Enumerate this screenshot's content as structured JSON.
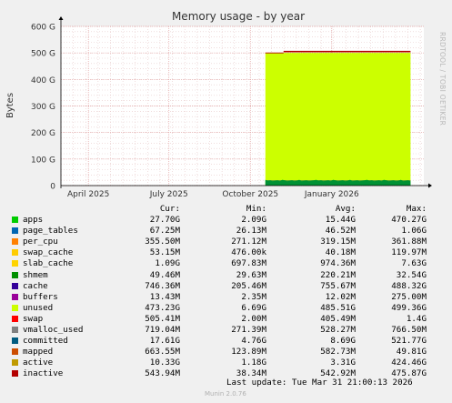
{
  "chart_data": {
    "type": "area",
    "title": "Memory usage - by year",
    "ylabel": "Bytes",
    "xlabel": "",
    "ylim": [
      0,
      600
    ],
    "y_unit": "G",
    "yticks": [
      0,
      100,
      200,
      300,
      400,
      500,
      600
    ],
    "ytick_labels": [
      "0",
      "100 G",
      "200 G",
      "300 G",
      "400 G",
      "500 G",
      "600 G"
    ],
    "xticks": [
      {
        "label": "April 2025",
        "date": "2025-04-01"
      },
      {
        "label": "July 2025",
        "date": "2025-07-01"
      },
      {
        "label": "October 2025",
        "date": "2025-10-01"
      },
      {
        "label": "January 2026",
        "date": "2026-01-01"
      }
    ],
    "xlim": [
      "2025-03-01",
      "2026-04-15"
    ],
    "data_start": "2025-10-18",
    "data_end": "2026-03-31",
    "grid": true,
    "series": [
      {
        "name": "apps",
        "color": "#00cc00",
        "approx_level": 20
      },
      {
        "name": "unused",
        "color": "#ccff00",
        "approx_level": 500
      },
      {
        "name": "swap",
        "color": "#ff0000",
        "approx_level": 505
      }
    ],
    "side_text": "RRDTOOL / TOBI OETIKER"
  },
  "legend": {
    "headers": {
      "cur": "Cur:",
      "min": "Min:",
      "avg": "Avg:",
      "max": "Max:"
    },
    "rows": [
      {
        "name": "apps",
        "color": "#00cc00",
        "cur": "27.70G",
        "min": "2.09G",
        "avg": "15.44G",
        "max": "470.27G"
      },
      {
        "name": "page_tables",
        "color": "#0066b3",
        "cur": "67.25M",
        "min": "26.13M",
        "avg": "46.52M",
        "max": "1.06G"
      },
      {
        "name": "per_cpu",
        "color": "#ff8000",
        "cur": "355.50M",
        "min": "271.12M",
        "avg": "319.15M",
        "max": "361.88M"
      },
      {
        "name": "swap_cache",
        "color": "#ffcc00",
        "cur": "53.15M",
        "min": "476.00k",
        "avg": "40.18M",
        "max": "119.97M"
      },
      {
        "name": "slab_cache",
        "color": "#ffd400",
        "cur": "1.09G",
        "min": "697.83M",
        "avg": "974.36M",
        "max": "7.63G"
      },
      {
        "name": "shmem",
        "color": "#008f00",
        "cur": "49.46M",
        "min": "29.63M",
        "avg": "220.21M",
        "max": "32.54G"
      },
      {
        "name": "cache",
        "color": "#330099",
        "cur": "746.36M",
        "min": "205.46M",
        "avg": "755.67M",
        "max": "488.32G"
      },
      {
        "name": "buffers",
        "color": "#990099",
        "cur": "13.43M",
        "min": "2.35M",
        "avg": "12.02M",
        "max": "275.00M"
      },
      {
        "name": "unused",
        "color": "#ccff00",
        "cur": "473.23G",
        "min": "6.69G",
        "avg": "485.51G",
        "max": "499.36G"
      },
      {
        "name": "swap",
        "color": "#ff0000",
        "cur": "505.41M",
        "min": "2.00M",
        "avg": "405.49M",
        "max": "1.4G"
      },
      {
        "name": "vmalloc_used",
        "color": "#808080",
        "cur": "719.04M",
        "min": "271.39M",
        "avg": "528.27M",
        "max": "766.50M"
      },
      {
        "name": "committed",
        "color": "#005b80",
        "cur": "17.61G",
        "min": "4.76G",
        "avg": "8.69G",
        "max": "521.77G"
      },
      {
        "name": "mapped",
        "color": "#cc4d00",
        "cur": "663.55M",
        "min": "123.89M",
        "avg": "582.73M",
        "max": "49.81G"
      },
      {
        "name": "active",
        "color": "#c09a00",
        "cur": "10.33G",
        "min": "1.18G",
        "avg": "3.31G",
        "max": "424.46G"
      },
      {
        "name": "inactive",
        "color": "#b30000",
        "cur": "543.94M",
        "min": "38.34M",
        "avg": "542.92M",
        "max": "475.87G"
      }
    ]
  },
  "footer": {
    "last_update": "Last update: Tue Mar 31 21:00:13 2026",
    "munin": "Munin 2.0.76"
  }
}
